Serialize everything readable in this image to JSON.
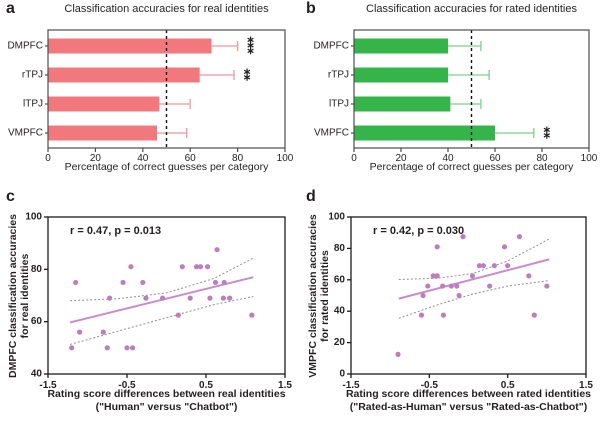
{
  "panel_letters": {
    "a": "a",
    "b": "b",
    "c": "c",
    "d": "d"
  },
  "chart_data": [
    {
      "id": "a",
      "type": "bar",
      "orientation": "horizontal",
      "panel_letter": "a",
      "title": "Classification accuracies for real identities",
      "xlabel": "Percentage of correct guesses per category",
      "categories": [
        "DMPFC",
        "rTPJ",
        "lTPJ",
        "VMPFC"
      ],
      "values": [
        69,
        64,
        47,
        46
      ],
      "error_upper": [
        80,
        78.5,
        60,
        58.5
      ],
      "significance": [
        "***",
        "**",
        "",
        ""
      ],
      "xlim": [
        0,
        100
      ],
      "xticks": [
        0,
        20,
        40,
        60,
        80,
        100
      ],
      "reference_line": 50,
      "bar_color": "#f1797e",
      "error_color": "#f1989c",
      "frame_color": "#4d4d4f"
    },
    {
      "id": "b",
      "type": "bar",
      "orientation": "horizontal",
      "panel_letter": "b",
      "title": "Classification accuracies for rated identities",
      "xlabel": "Percentage of correct guesses per category",
      "categories": [
        "DMPFC",
        "rTPJ",
        "lTPJ",
        "VMPFC"
      ],
      "values": [
        40,
        40,
        41,
        60
      ],
      "error_upper": [
        54,
        57.5,
        54,
        76.5
      ],
      "significance": [
        "",
        "",
        "",
        "**"
      ],
      "xlim": [
        0,
        100
      ],
      "xticks": [
        0,
        20,
        40,
        60,
        80,
        100
      ],
      "reference_line": 50,
      "bar_color": "#35b44a",
      "error_color": "#7ccf8b",
      "frame_color": "#4d4d4f"
    },
    {
      "id": "c",
      "type": "scatter",
      "panel_letter": "c",
      "annotation": "r = 0.47, p = 0.013",
      "xlabel_line1": "Rating score differences between real identities",
      "xlabel_line2": "(\"Human\" versus \"Chatbot\")",
      "ylabel_line1": "DMPFC classification accuracies",
      "ylabel_line2": "for real identities",
      "xlim": [
        -1.5,
        1.5
      ],
      "ylim": [
        40,
        100
      ],
      "xticks": [
        -1.5,
        -0.5,
        0.5,
        1.5
      ],
      "xtick_labels": [
        "-1.5",
        "-0.5",
        "0.5",
        "1.5"
      ],
      "yticks": [
        40,
        60,
        80,
        100
      ],
      "points": [
        [
          -1.2,
          50
        ],
        [
          -1.15,
          75
        ],
        [
          -1.1,
          56
        ],
        [
          -0.8,
          56
        ],
        [
          -0.75,
          50
        ],
        [
          -0.72,
          69
        ],
        [
          -0.55,
          75
        ],
        [
          -0.5,
          50
        ],
        [
          -0.45,
          81
        ],
        [
          -0.43,
          50
        ],
        [
          -0.3,
          75
        ],
        [
          -0.26,
          69
        ],
        [
          -0.05,
          69
        ],
        [
          0.15,
          62.5
        ],
        [
          0.2,
          81
        ],
        [
          0.3,
          69
        ],
        [
          0.38,
          81
        ],
        [
          0.43,
          81
        ],
        [
          0.52,
          81
        ],
        [
          0.55,
          69
        ],
        [
          0.62,
          75
        ],
        [
          0.64,
          87.5
        ],
        [
          0.72,
          69
        ],
        [
          0.73,
          75
        ],
        [
          0.8,
          69
        ],
        [
          1.08,
          62.5
        ]
      ],
      "regression": {
        "x1": -1.22,
        "y1": 59.7,
        "x2": 1.1,
        "y2": 77
      },
      "ci_upper": [
        [
          -1.22,
          68
        ],
        [
          -0.6,
          68.8
        ],
        [
          0,
          71
        ],
        [
          0.6,
          76.5
        ],
        [
          1.1,
          84.3
        ]
      ],
      "ci_lower": [
        [
          -1.22,
          51.3
        ],
        [
          -0.6,
          56.5
        ],
        [
          0,
          61.5
        ],
        [
          0.6,
          66.5
        ],
        [
          1.1,
          69.6
        ]
      ],
      "point_color": "#bd7ebe",
      "line_color": "#ca8bcb",
      "ci_color": "#8f8f8f",
      "frame_color": "#1c1c1c"
    },
    {
      "id": "d",
      "type": "scatter",
      "panel_letter": "d",
      "annotation": "r = 0.42, p = 0.030",
      "xlabel_line1": "Rating score differences between rated identities",
      "xlabel_line2": "(\"Rated-as-Human\" versus \"Rated-as-Chatbot\")",
      "ylabel_line1": "VMPFC classification accuracies",
      "ylabel_line2": "for rated identities",
      "xlim": [
        -1.5,
        1.5
      ],
      "ylim": [
        0,
        100
      ],
      "xticks": [
        -1.5,
        -0.5,
        0.5,
        1.5
      ],
      "xtick_labels": [
        "-1.5",
        "-0.5",
        "0.5",
        "1.5"
      ],
      "yticks": [
        0,
        20,
        40,
        60,
        80,
        100
      ],
      "points": [
        [
          -0.9,
          12.5
        ],
        [
          -0.6,
          37.5
        ],
        [
          -0.58,
          50
        ],
        [
          -0.52,
          56
        ],
        [
          -0.45,
          62.5
        ],
        [
          -0.4,
          62.5
        ],
        [
          -0.4,
          81
        ],
        [
          -0.33,
          56
        ],
        [
          -0.32,
          37.5
        ],
        [
          -0.22,
          56
        ],
        [
          -0.15,
          56
        ],
        [
          -0.12,
          50
        ],
        [
          -0.07,
          87.5
        ],
        [
          0.05,
          62.5
        ],
        [
          0.14,
          69
        ],
        [
          0.19,
          69
        ],
        [
          0.27,
          56
        ],
        [
          0.33,
          69
        ],
        [
          0.46,
          81
        ],
        [
          0.5,
          69
        ],
        [
          0.65,
          87.5
        ],
        [
          0.77,
          62.5
        ],
        [
          0.84,
          37.5
        ],
        [
          1.0,
          56
        ]
      ],
      "regression": {
        "x1": -0.89,
        "y1": 48,
        "x2": 1.03,
        "y2": 73
      },
      "ci_upper": [
        [
          -0.89,
          60.2
        ],
        [
          -0.4,
          61
        ],
        [
          0.06,
          64
        ],
        [
          0.5,
          72
        ],
        [
          1.03,
          86
        ]
      ],
      "ci_lower": [
        [
          -0.89,
          35.5
        ],
        [
          -0.4,
          44
        ],
        [
          0.06,
          51
        ],
        [
          0.5,
          56
        ],
        [
          1.03,
          59.5
        ]
      ],
      "point_color": "#bd7ebe",
      "line_color": "#ca8bcb",
      "ci_color": "#8f8f8f",
      "frame_color": "#1c1c1c"
    }
  ]
}
